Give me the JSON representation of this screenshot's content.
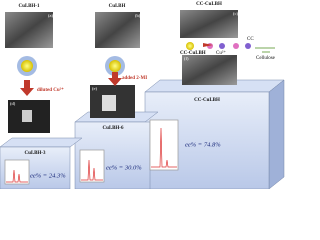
{
  "top_labels": [
    "CuI.BH-1",
    "CuI.BH",
    "CC-CuI.BH"
  ],
  "image_tags": [
    "(a)",
    "(b)",
    "(c)",
    "(d)",
    "(e)",
    "(f)"
  ],
  "arrows": [
    "diluted Cu²⁺",
    "added 2-MI"
  ],
  "scheme": {
    "product": "CC-CuI.BH",
    "cc": "CC",
    "cu": "Cu²⁺",
    "cellulose": "Cellulose"
  },
  "boxes": [
    {
      "label": "CuI.BH-3",
      "ee": "ee% = 24.3%"
    },
    {
      "label": "CuI.BH-6",
      "ee": "ee% = 30.0%"
    },
    {
      "label": "CC-CuI.BH",
      "ee": "ee% = 74.8%"
    }
  ]
}
